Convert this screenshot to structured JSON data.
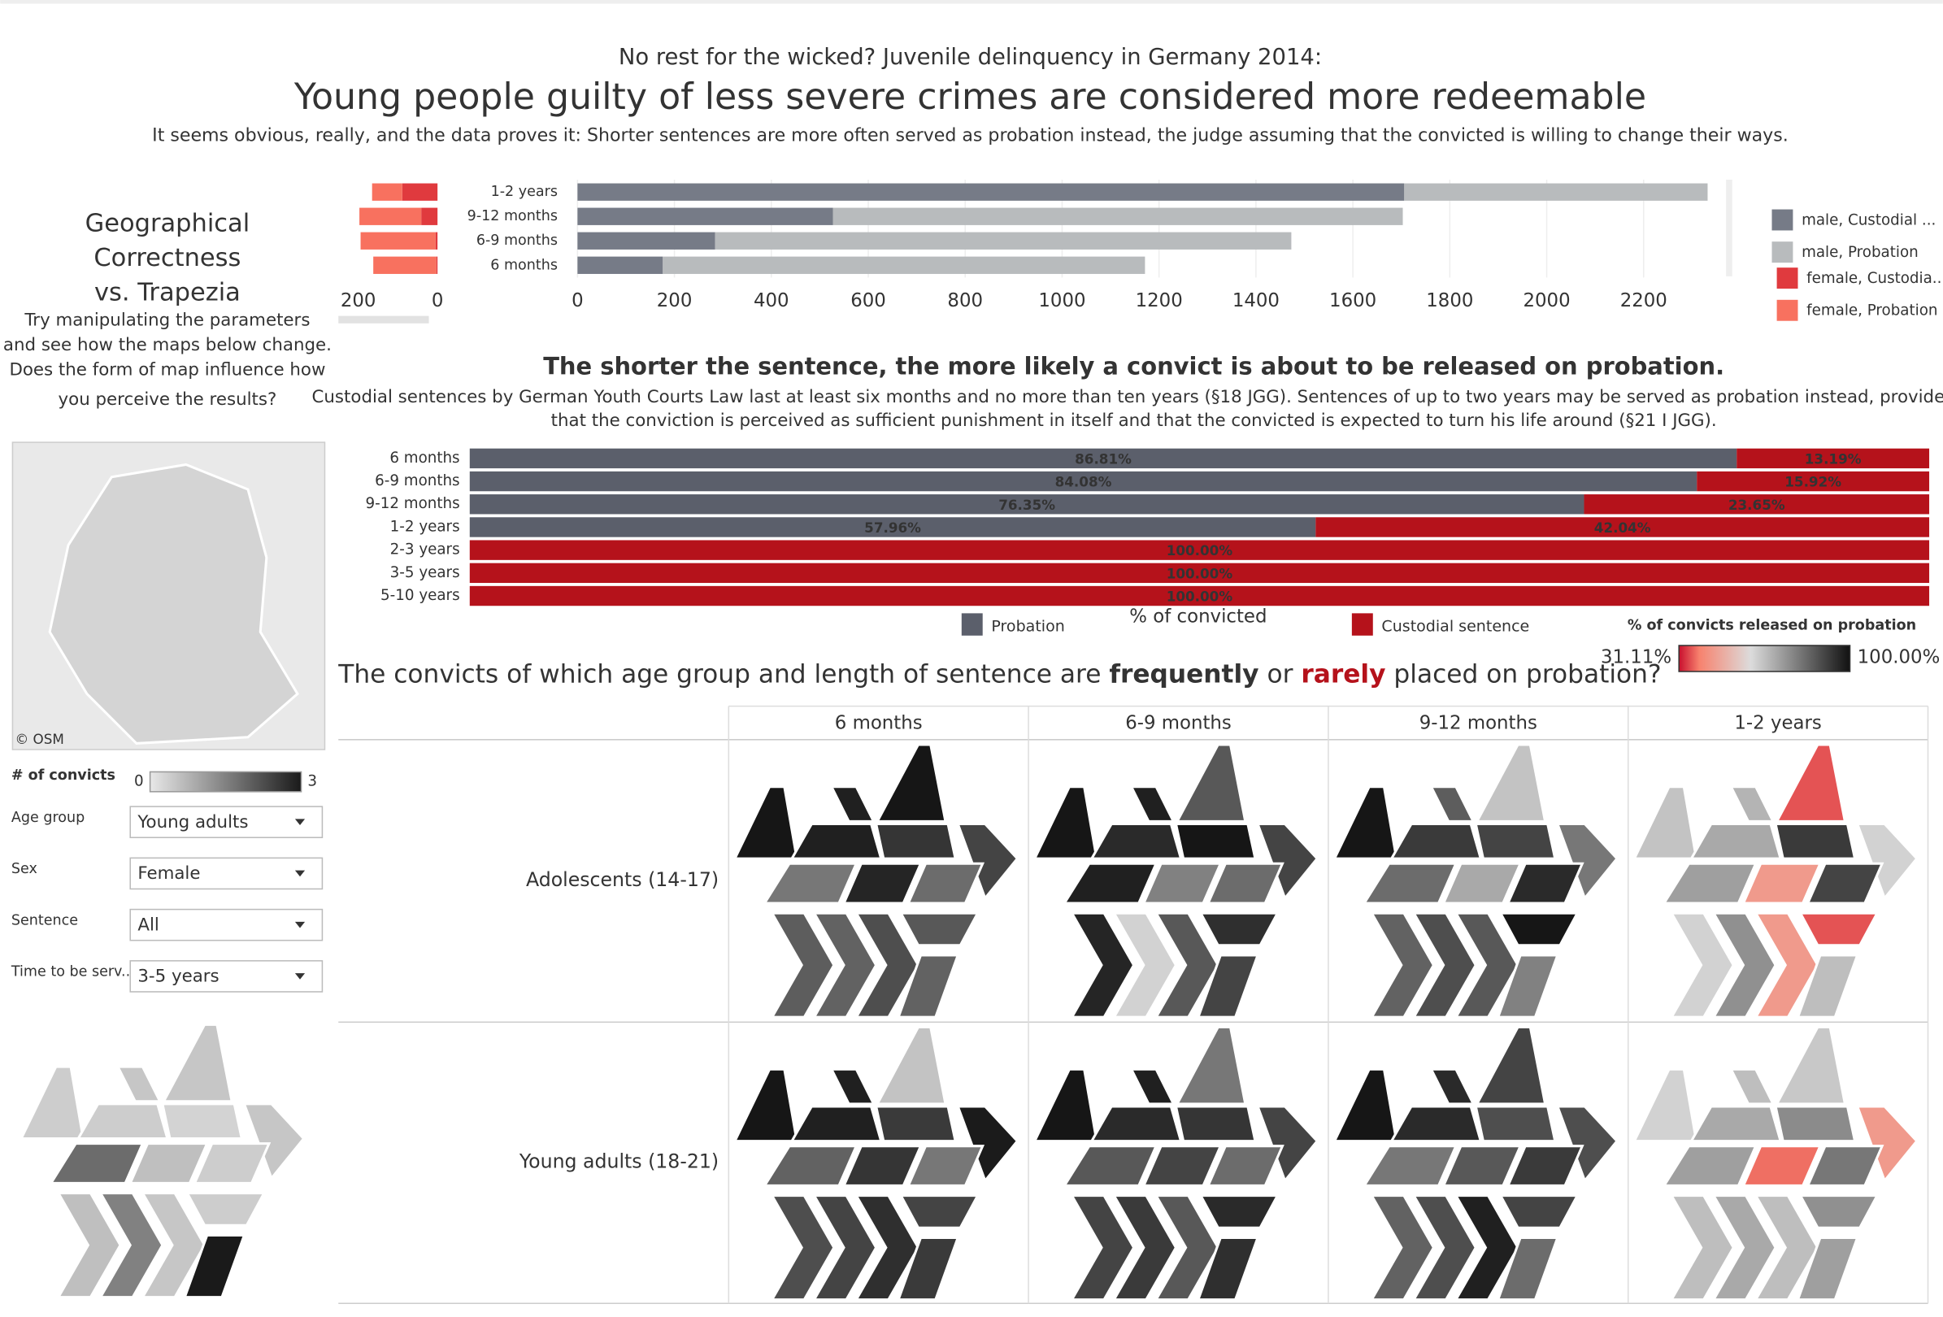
{
  "header": {
    "kicker": "No rest for the wicked? Juvenile delinquency in Germany 2014:",
    "title": "Young people guilty of less severe crimes are considered more redeemable",
    "subtitle": "It seems obvious, really, and the data proves it: Shorter sentences are more often served as probation instead, the judge assuming that the convicted is willing to change their ways."
  },
  "sidebar": {
    "title_lines": [
      "Geographical",
      "Correctness",
      "vs. Trapezia"
    ],
    "text_lines": [
      "Try manipulating the parameters",
      "and see how the maps below change.",
      "Does the form of map influence how",
      "you perceive the results?"
    ],
    "map_credit": "© OSM"
  },
  "filters": [
    {
      "label": "Age group",
      "value": "Young adults"
    },
    {
      "label": "Sex",
      "value": "Female"
    },
    {
      "label": "Sentence",
      "value": "All"
    },
    {
      "label": "Time to be serv...",
      "value": "3-5 years"
    }
  ],
  "chart_data": [
    {
      "type": "hbar",
      "reversed": true,
      "categories": [
        "1-2 years",
        "9-12 months",
        "6-9 months",
        "6 months"
      ],
      "xlim": [
        0,
        250
      ],
      "xticks": [
        0,
        200
      ],
      "series": [
        {
          "name": "female, Custodia...",
          "color": "#e03a3e",
          "values": [
            89,
            41,
            5,
            3
          ]
        },
        {
          "name": "female, Probation",
          "color": "#f8715f",
          "values": [
            76,
            156,
            189,
            159
          ]
        }
      ]
    },
    {
      "type": "hbar",
      "categories": [
        "1-2 years",
        "9-12 months",
        "6-9 months",
        "6 months"
      ],
      "xlim": [
        0,
        2370
      ],
      "xticks": [
        0,
        200,
        400,
        600,
        800,
        1000,
        1200,
        1400,
        1600,
        1800,
        2000,
        2200
      ],
      "grid": true,
      "series": [
        {
          "name": "male, Custodial ...",
          "color": "#767b87",
          "values": [
            1706,
            527,
            284,
            176
          ]
        },
        {
          "name": "male, Probation",
          "color": "#b8bbbd",
          "values": [
            626,
            1176,
            1189,
            995
          ]
        }
      ]
    },
    {
      "type": "hbar100",
      "title": "The shorter the sentence, the more likely a convict is about to be released on probation.",
      "subtitle_lines": [
        "Custodial sentences by German Youth Courts Law last at least six months and no more than ten years (§18 JGG). Sentences of up to two years may be served as probation instead, provided",
        "that the conviction is perceived as sufficient punishment in itself and that the convicted is expected to turn his life around (§21 I JGG)."
      ],
      "x_label": "% of convicted",
      "categories": [
        "6 months",
        "6-9 months",
        "9-12 months",
        "1-2 years",
        "2-3 years",
        "3-5 years",
        "5-10 years"
      ],
      "xlim": [
        0,
        100
      ],
      "series": [
        {
          "name": "Probation",
          "color": "#5b5f6b",
          "values": [
            86.81,
            84.08,
            76.35,
            57.96,
            0,
            0,
            0
          ],
          "value_labels": [
            "86.81%",
            "84.08%",
            "76.35%",
            "57.96%",
            null,
            null,
            null
          ]
        },
        {
          "name": "Custodial sentence",
          "color": "#b5121b",
          "values": [
            13.19,
            15.92,
            23.65,
            42.04,
            100,
            100,
            100
          ],
          "value_labels": [
            "13.19%",
            "15.92%",
            "23.65%",
            "42.04%",
            "100.00%",
            "100.00%",
            "100.00%"
          ]
        }
      ]
    },
    {
      "type": "tilemap",
      "title_parts": [
        "The convicts of which age group and length of sentence are ",
        "frequently",
        " or ",
        "rarely",
        " placed on probation?"
      ],
      "color_title": "% of convicts released on probation",
      "colors": [
        "#c8102e",
        "#f7826e",
        "#dcdcdc",
        "#111111"
      ],
      "clim": [
        {
          "value": 31.11,
          "label": "31.11%"
        },
        {
          "value": 100,
          "label": "100.00%"
        }
      ],
      "columns": [
        "6 months",
        "6-9 months",
        "9-12 months",
        "1-2 years"
      ],
      "rows": [
        "Adolescents (14-17)",
        "Young adults (18-21)"
      ],
      "values": [
        [
          [
            99,
            97,
            99,
            97,
            93,
            90,
            80,
            96,
            82,
            85,
            84,
            88,
            86,
            84
          ],
          [
            99,
            97,
            86,
            95,
            99,
            90,
            97,
            78,
            82,
            96,
            62,
            86,
            94,
            90
          ],
          [
            99,
            85,
            65,
            92,
            90,
            80,
            82,
            70,
            95,
            84,
            88,
            86,
            99,
            78
          ],
          [
            65,
            68,
            36,
            70,
            92,
            62,
            72,
            45,
            90,
            62,
            75,
            45,
            36,
            66
          ]
        ],
        [
          [
            99,
            97,
            65,
            97,
            92,
            98,
            84,
            93,
            80,
            88,
            90,
            94,
            90,
            92
          ],
          [
            99,
            97,
            80,
            95,
            93,
            90,
            86,
            90,
            82,
            90,
            92,
            86,
            95,
            94
          ],
          [
            99,
            95,
            90,
            95,
            88,
            88,
            80,
            86,
            92,
            84,
            88,
            97,
            90,
            82
          ],
          [
            62,
            66,
            64,
            70,
            76,
            45,
            72,
            38,
            80,
            66,
            70,
            66,
            75,
            72
          ]
        ]
      ]
    },
    {
      "type": "tilemap",
      "x_label": "# of convicts",
      "colors": [
        "#e8e8e8",
        "#1a1a1a"
      ],
      "clim": [
        0,
        3
      ],
      "values": [
        0.4,
        0.5,
        0.5,
        0.4,
        0.3,
        0.5,
        1.8,
        0.6,
        0.4,
        0.6,
        1.5,
        0.5,
        0.4,
        3
      ]
    }
  ]
}
